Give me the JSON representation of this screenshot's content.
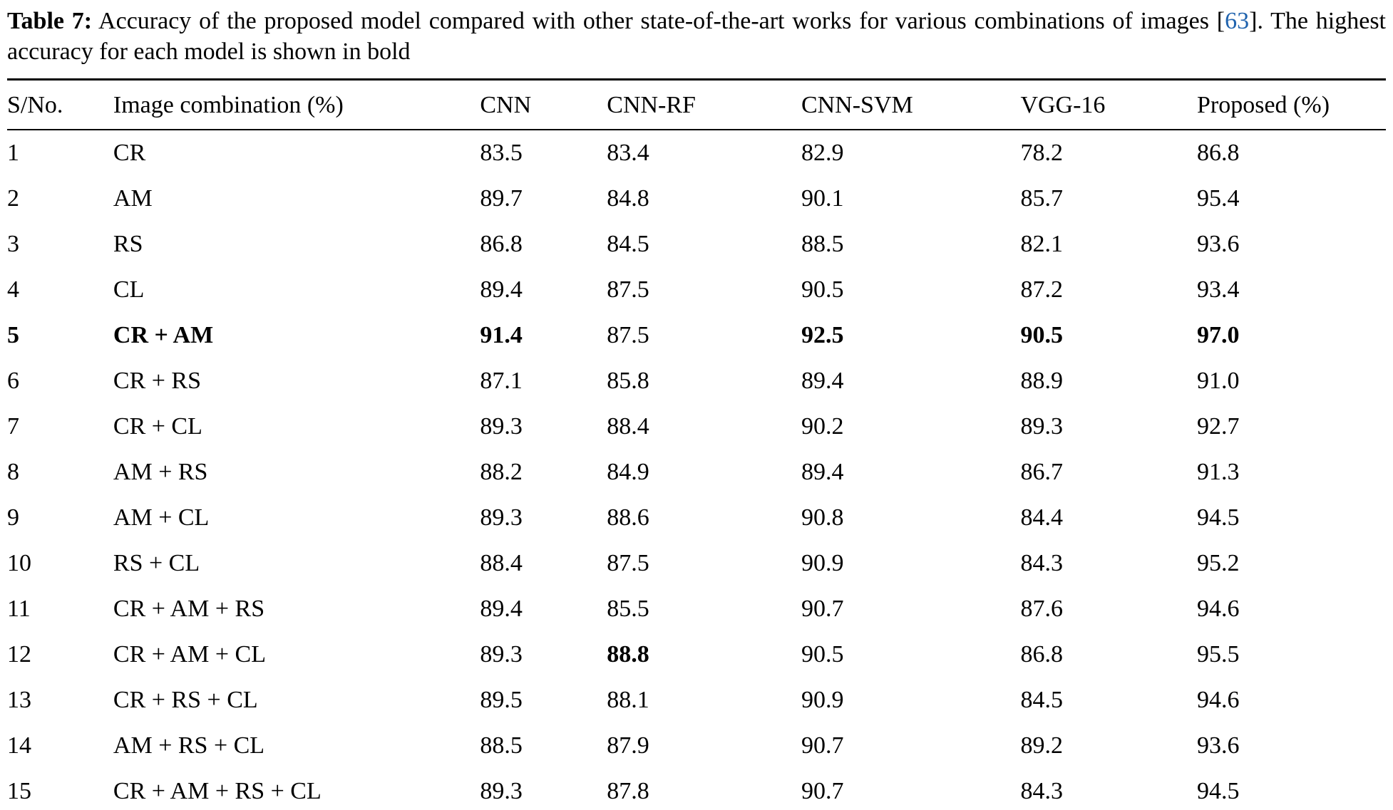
{
  "caption": {
    "label": "Table 7:",
    "before_citation": " Accuracy of the proposed model compared with other state-of-the-art works for various combinations of images ",
    "citation_open": "[",
    "citation_number": "63",
    "citation_close": "]",
    "after_citation": ". The highest accuracy for each model is shown in bold",
    "citation_color": "#2063ae"
  },
  "table": {
    "columns": [
      "S/No.",
      "Image combination (%)",
      "CNN",
      "CNN-RF",
      "CNN-SVM",
      "VGG-16",
      "Proposed (%)"
    ],
    "rows": [
      {
        "sno": "1",
        "combination": "CR",
        "values": [
          "83.5",
          "83.4",
          "82.9",
          "78.2",
          "86.8"
        ],
        "bold_label": false,
        "bold_values": [
          false,
          false,
          false,
          false,
          false
        ]
      },
      {
        "sno": "2",
        "combination": "AM",
        "values": [
          "89.7",
          "84.8",
          "90.1",
          "85.7",
          "95.4"
        ],
        "bold_label": false,
        "bold_values": [
          false,
          false,
          false,
          false,
          false
        ]
      },
      {
        "sno": "3",
        "combination": "RS",
        "values": [
          "86.8",
          "84.5",
          "88.5",
          "82.1",
          "93.6"
        ],
        "bold_label": false,
        "bold_values": [
          false,
          false,
          false,
          false,
          false
        ]
      },
      {
        "sno": "4",
        "combination": "CL",
        "values": [
          "89.4",
          "87.5",
          "90.5",
          "87.2",
          "93.4"
        ],
        "bold_label": false,
        "bold_values": [
          false,
          false,
          false,
          false,
          false
        ]
      },
      {
        "sno": "5",
        "combination": "CR + AM",
        "values": [
          "91.4",
          "87.5",
          "92.5",
          "90.5",
          "97.0"
        ],
        "bold_label": true,
        "bold_values": [
          true,
          false,
          true,
          true,
          true
        ]
      },
      {
        "sno": "6",
        "combination": "CR + RS",
        "values": [
          "87.1",
          "85.8",
          "89.4",
          "88.9",
          "91.0"
        ],
        "bold_label": false,
        "bold_values": [
          false,
          false,
          false,
          false,
          false
        ]
      },
      {
        "sno": "7",
        "combination": "CR + CL",
        "values": [
          "89.3",
          "88.4",
          "90.2",
          "89.3",
          "92.7"
        ],
        "bold_label": false,
        "bold_values": [
          false,
          false,
          false,
          false,
          false
        ]
      },
      {
        "sno": "8",
        "combination": "AM + RS",
        "values": [
          "88.2",
          "84.9",
          "89.4",
          "86.7",
          "91.3"
        ],
        "bold_label": false,
        "bold_values": [
          false,
          false,
          false,
          false,
          false
        ]
      },
      {
        "sno": "9",
        "combination": "AM + CL",
        "values": [
          "89.3",
          "88.6",
          "90.8",
          "84.4",
          "94.5"
        ],
        "bold_label": false,
        "bold_values": [
          false,
          false,
          false,
          false,
          false
        ]
      },
      {
        "sno": "10",
        "combination": "RS + CL",
        "values": [
          "88.4",
          "87.5",
          "90.9",
          "84.3",
          "95.2"
        ],
        "bold_label": false,
        "bold_values": [
          false,
          false,
          false,
          false,
          false
        ]
      },
      {
        "sno": "11",
        "combination": "CR + AM + RS",
        "values": [
          "89.4",
          "85.5",
          "90.7",
          "87.6",
          "94.6"
        ],
        "bold_label": false,
        "bold_values": [
          false,
          false,
          false,
          false,
          false
        ]
      },
      {
        "sno": "12",
        "combination": "CR + AM + CL",
        "values": [
          "89.3",
          "88.8",
          "90.5",
          "86.8",
          "95.5"
        ],
        "bold_label": false,
        "bold_values": [
          false,
          true,
          false,
          false,
          false
        ]
      },
      {
        "sno": "13",
        "combination": "CR + RS + CL",
        "values": [
          "89.5",
          "88.1",
          "90.9",
          "84.5",
          "94.6"
        ],
        "bold_label": false,
        "bold_values": [
          false,
          false,
          false,
          false,
          false
        ]
      },
      {
        "sno": "14",
        "combination": "AM + RS + CL",
        "values": [
          "88.5",
          "87.9",
          "90.7",
          "89.2",
          "93.6"
        ],
        "bold_label": false,
        "bold_values": [
          false,
          false,
          false,
          false,
          false
        ]
      },
      {
        "sno": "15",
        "combination": "CR + AM + RS + CL",
        "values": [
          "89.3",
          "87.8",
          "90.7",
          "84.3",
          "94.5"
        ],
        "bold_label": false,
        "bold_values": [
          false,
          false,
          false,
          false,
          false
        ]
      }
    ]
  }
}
